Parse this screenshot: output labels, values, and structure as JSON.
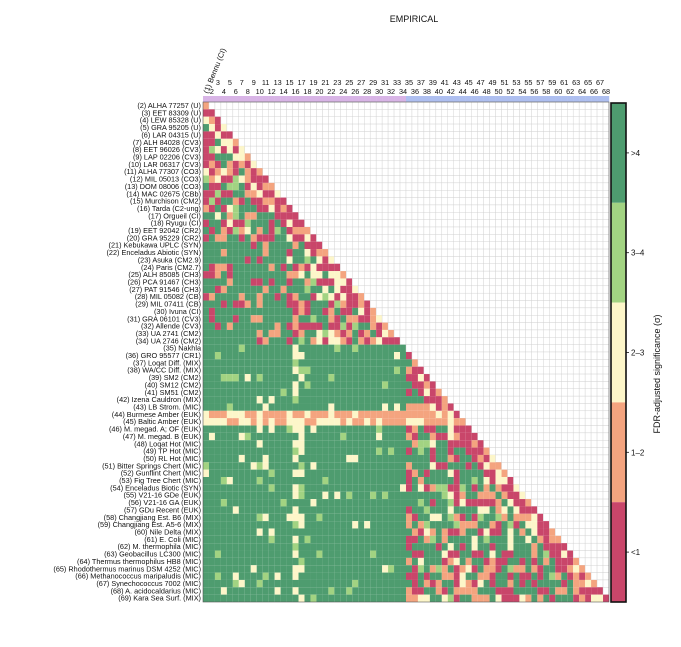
{
  "chart_data": {
    "type": "heatmap",
    "title": "EMPIRICAL",
    "colorbar_label": "FDR-adjusted significance (σ)",
    "colorbar_levels": [
      {
        "label": "<1",
        "color": "#c9466a"
      },
      {
        "label": "1–2",
        "color": "#f4a47f"
      },
      {
        "label": "2–3",
        "color": "#fdf6c9"
      },
      {
        "label": "3–4",
        "color": "#a2d382"
      },
      {
        "label": ">4",
        "color": "#4e9c6f"
      }
    ],
    "top_axis_first_label": "(1) Bennu (CI)",
    "top_axis_numbers": [
      "2",
      "3",
      "4",
      "5",
      "6",
      "7",
      "8",
      "9",
      "10",
      "11",
      "12",
      "13",
      "14",
      "15",
      "16",
      "17",
      "18",
      "19",
      "20",
      "21",
      "22",
      "23",
      "24",
      "25",
      "26",
      "27",
      "28",
      "29",
      "30",
      "31",
      "32",
      "33",
      "34",
      "35",
      "36",
      "37",
      "38",
      "39",
      "40",
      "41",
      "42",
      "43",
      "44",
      "45",
      "46",
      "47",
      "48",
      "49",
      "50",
      "51",
      "52",
      "53",
      "54",
      "55",
      "56",
      "57",
      "58",
      "59",
      "60",
      "61",
      "62",
      "63",
      "64",
      "65",
      "66",
      "67",
      "68"
    ],
    "row_labels": [
      "(2) ALHA 77257 (U)",
      "(3) EET 83309 (U)",
      "(4) LEW 85328 (U)",
      "(5) GRA 95205 (U)",
      "(6) LAR 04315 (U)",
      "(7) ALH 84028 (CV3)",
      "(8) EET 96026 (CV3)",
      "(9) LAP 02206 (CV3)",
      "(10) LAR 06317 (CV3)",
      "(11) ALHA 77307 (CO3)",
      "(12) MIL 05013 (CO3)",
      "(13) DOM 08006 (CO3)",
      "(14) MAC 02675 (CBb)",
      "(15) Murchison (CM2)",
      "(16) Tarda (C2-ung)",
      "(17) Orgueil (CI)",
      "(18) Ryugu (CI)",
      "(19) EET 92042 (CR2)",
      "(20) GRA 95229 (CR2)",
      "(21) Kebukawa UPLC (SYN)",
      "(22) Enceladus Abiotic (SYN)",
      "(23) Asuka (CM2.9)",
      "(24) Paris (CM2.7)",
      "(25) ALH 85085 (CH3)",
      "(26) PCA 91467 (CH3)",
      "(27) PAT 91546 (CH3)",
      "(28) MIL 05082 (CB)",
      "(29) MIL 07411 (CB)",
      "(30) Ivuna (CI)",
      "(31) GRA 06101 (CV3)",
      "(32) Allende (CV3)",
      "(33) UA 2741 (CM2)",
      "(34) UA 2746 (CM2)",
      "(35) Nakhla",
      "(36) GRO 95577 (CR1)",
      "(37) Loqat Diff. (MIX)",
      "(38) WA/CC Diff. (MIX)",
      "(39) SM2 (CM2)",
      "(40) SM12 (CM2)",
      "(41) SM51 (CM2)",
      "(42) Izena Cauldron (MIX)",
      "(43) LB Strom. (MIC)",
      "(44) Burmese Amber (EUK)",
      "(45) Baltic Amber (EUK)",
      "(46) M. megad. A; OF (EUK)",
      "(47) M. megad. B (EUK)",
      "(48) Loqat Hot (MIC)",
      "(49) TP Hot (MIC)",
      "(50) RL Hot (MIC)",
      "(51) Bitter Springs Chert (MIC)",
      "(52) Gunflint Chert (MIC)",
      "(53) Fig Tree Chert (MIC)",
      "(54) Enceladus Biotic (SYN)",
      "(55) V21-16 GDe (EUK)",
      "(56) V21-16 GA (EUK)",
      "(57) GDu Recent (EUK)",
      "(58) Changjiang Est. B6 (MIX)",
      "(59) Changjiang Est. A5-6 (MIX)",
      "(60) Nile Delta (MIX)",
      "(61) E. Coli (MIC)",
      "(62) M. thermophila (MIC)",
      "(63) Geobacillus LC300 (MIC)",
      "(64) Thermus thermophilus HB8 (MIC)",
      "(65) Rhodothermus marinus DSM 4252 (MIC)",
      "(66) Methanococcus maripaludis (MIC)",
      "(67) Synechococcus 7002 (MIC)",
      "(68) A. acidocaldarius (MIC)",
      "(69) Kara Sea Surf. (MIX)"
    ],
    "top_axis_group_colors": {
      "group_a_end": "34",
      "group_a": "#d8b4e6",
      "group_b": "#aebff0"
    },
    "notes": "Lower-triangular pairwise significance matrix: row i (samples 2–69) vs column j (samples 1–68), shown for j < i. Per-cell significance category index 0..4 (<1, 1–2, 2–3, 3–4, >4), pattern approximated from the figure.",
    "cells": "",
    "seed": 7
  }
}
